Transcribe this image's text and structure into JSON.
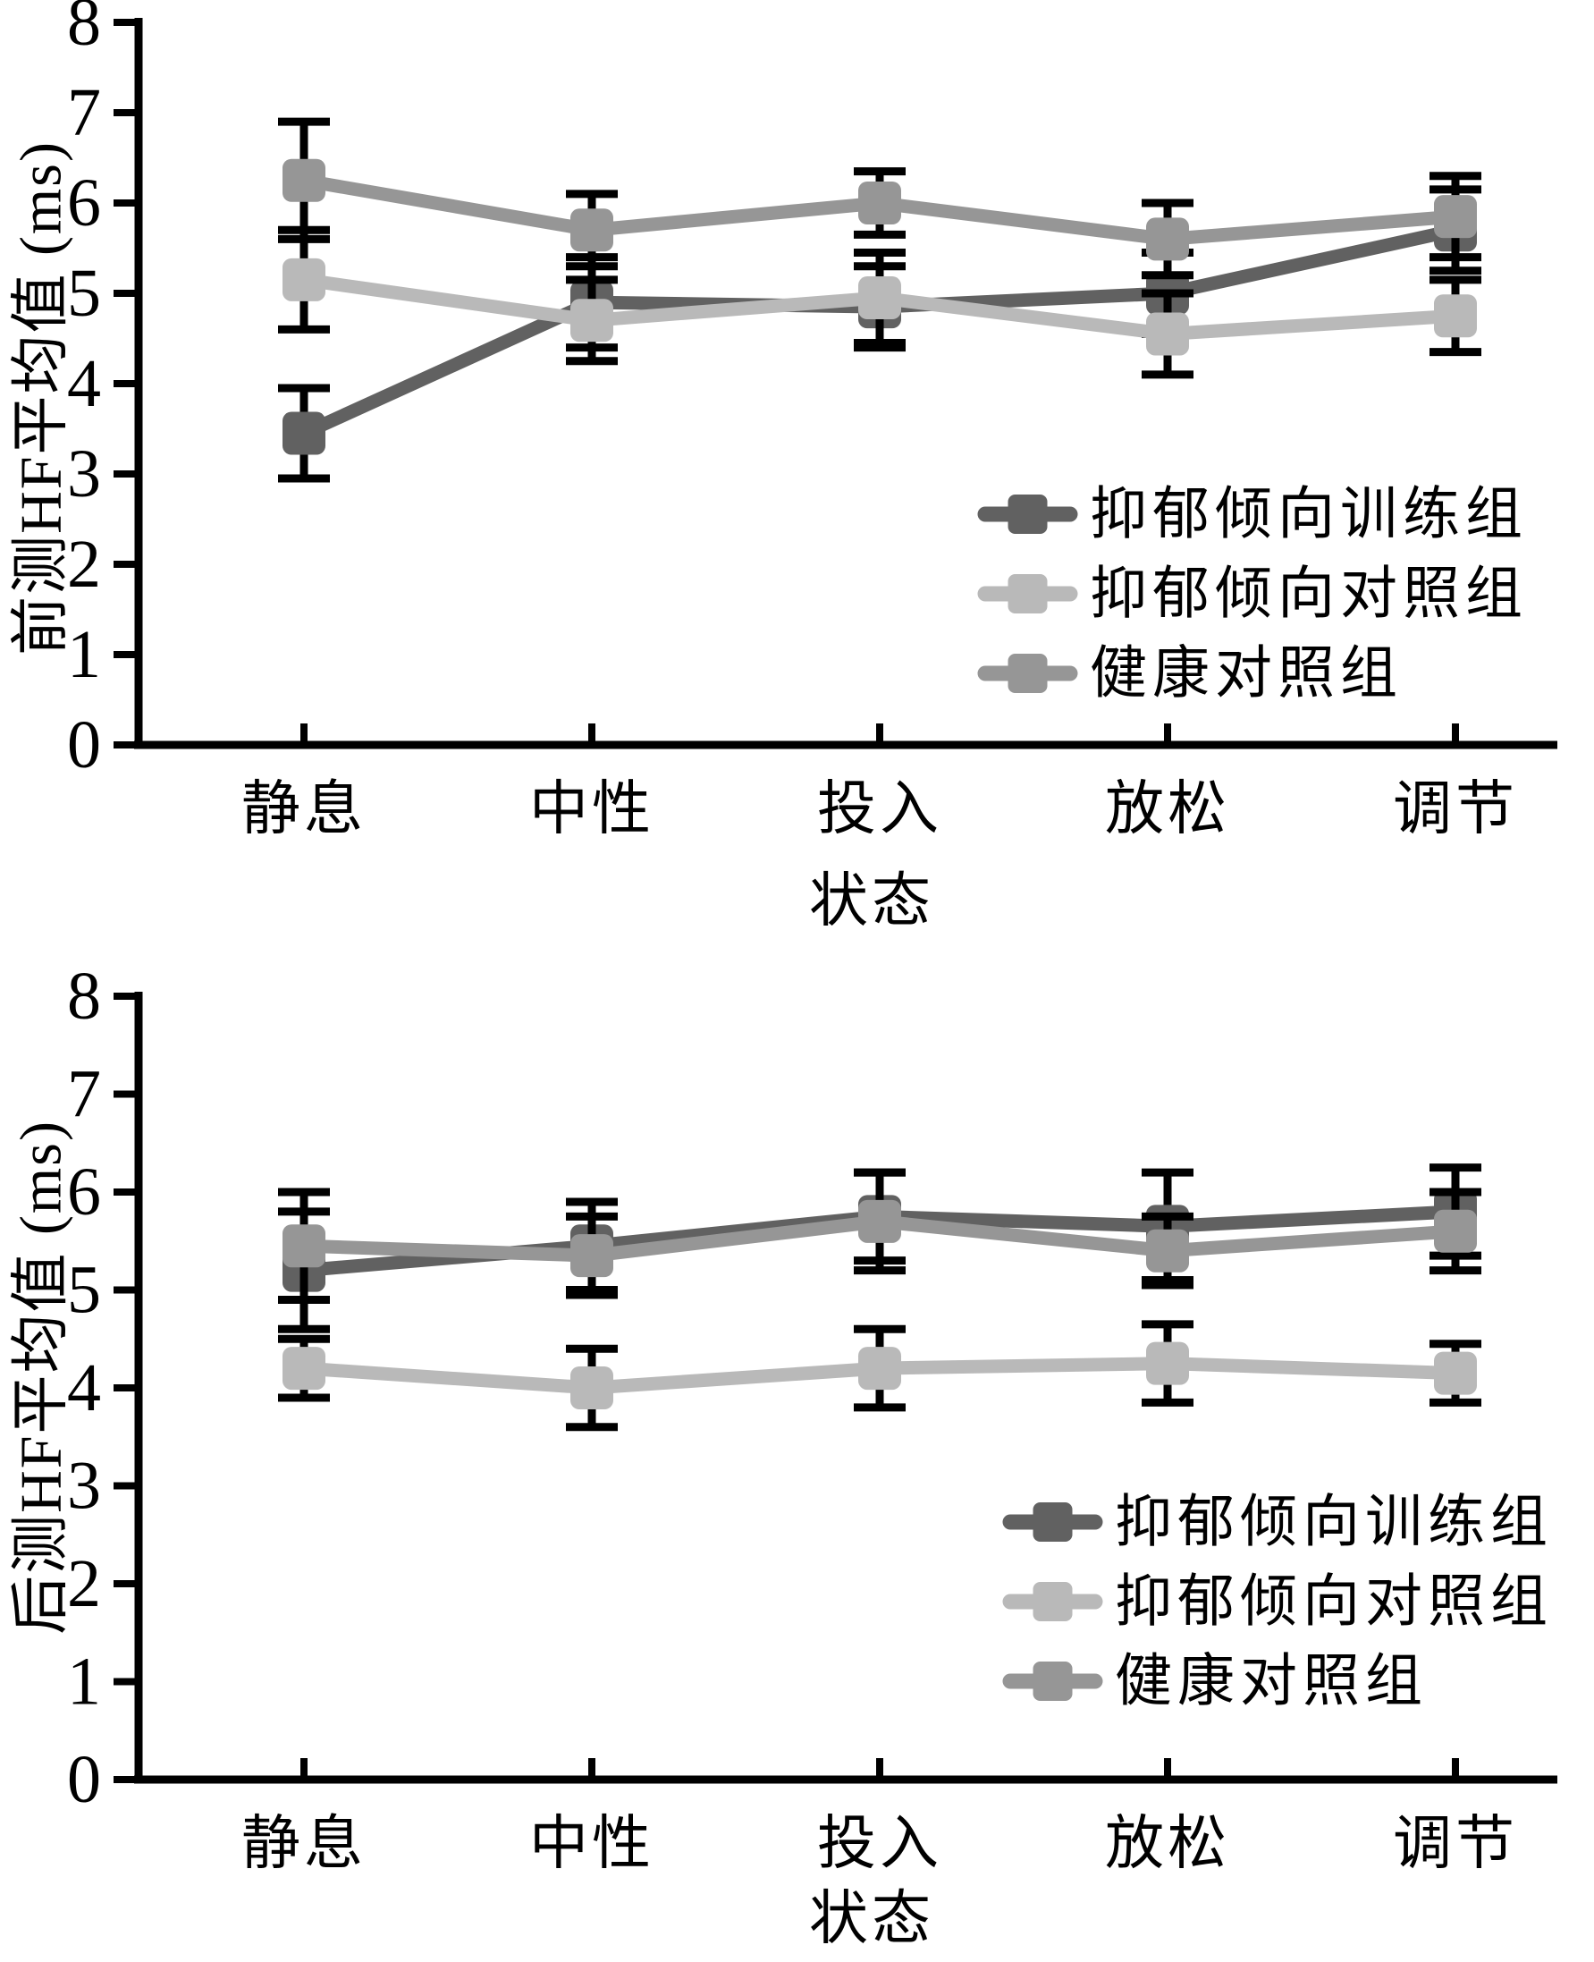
{
  "page": {
    "background": "#ffffff",
    "description_colors": {
      "axis_color": "#000000",
      "errorbar_color": "#000000",
      "series_dark_gray": "#616161",
      "series_light_gray": "#b9b9b9",
      "series_medium_gray": "#969696"
    }
  },
  "chart_data": [
    {
      "type": "line",
      "title": "",
      "ylabel": "前测HF平均值 (ms)",
      "xlabel": "状态",
      "categories": [
        "静息",
        "中性",
        "投入",
        "放松",
        "调节"
      ],
      "ylim": [
        0,
        8
      ],
      "yticks": [
        0,
        1,
        2,
        3,
        4,
        5,
        6,
        7,
        8
      ],
      "grid": false,
      "legend_position": "inside lower right",
      "marker": "square",
      "error_bars": true,
      "series": [
        {
          "name": "抑郁倾向训练组",
          "color": "#616161",
          "values": [
            3.45,
            4.9,
            4.85,
            5.0,
            5.7
          ],
          "errors": [
            0.5,
            0.5,
            0.45,
            0.45,
            0.45
          ]
        },
        {
          "name": "抑郁倾向对照组",
          "color": "#b9b9b9",
          "values": [
            5.15,
            4.7,
            4.95,
            4.55,
            4.75
          ],
          "errors": [
            0.55,
            0.45,
            0.5,
            0.45,
            0.4
          ]
        },
        {
          "name": "健康对照组",
          "color": "#969696",
          "values": [
            6.25,
            5.7,
            6.0,
            5.6,
            5.85
          ],
          "errors": [
            0.65,
            0.4,
            0.35,
            0.4,
            0.45
          ]
        }
      ]
    },
    {
      "type": "line",
      "title": "",
      "ylabel": "后测HF平均值 (ms)",
      "xlabel": "状态",
      "categories": [
        "静息",
        "中性",
        "投入",
        "放松",
        "调节"
      ],
      "ylim": [
        0,
        8
      ],
      "yticks": [
        0,
        1,
        2,
        3,
        4,
        5,
        6,
        7,
        8
      ],
      "grid": false,
      "legend_position": "inside lower right",
      "marker": "square",
      "error_bars": true,
      "series": [
        {
          "name": "抑郁倾向训练组",
          "color": "#616161",
          "values": [
            5.2,
            5.45,
            5.75,
            5.65,
            5.8
          ],
          "errors": [
            0.6,
            0.45,
            0.45,
            0.55,
            0.45
          ]
        },
        {
          "name": "抑郁倾向对照组",
          "color": "#b9b9b9",
          "values": [
            4.2,
            4.0,
            4.2,
            4.25,
            4.15
          ],
          "errors": [
            0.3,
            0.4,
            0.4,
            0.4,
            0.3
          ]
        },
        {
          "name": "健康对照组",
          "color": "#969696",
          "values": [
            5.45,
            5.35,
            5.7,
            5.4,
            5.6
          ],
          "errors": [
            0.55,
            0.4,
            0.5,
            0.35,
            0.4
          ]
        }
      ]
    }
  ]
}
